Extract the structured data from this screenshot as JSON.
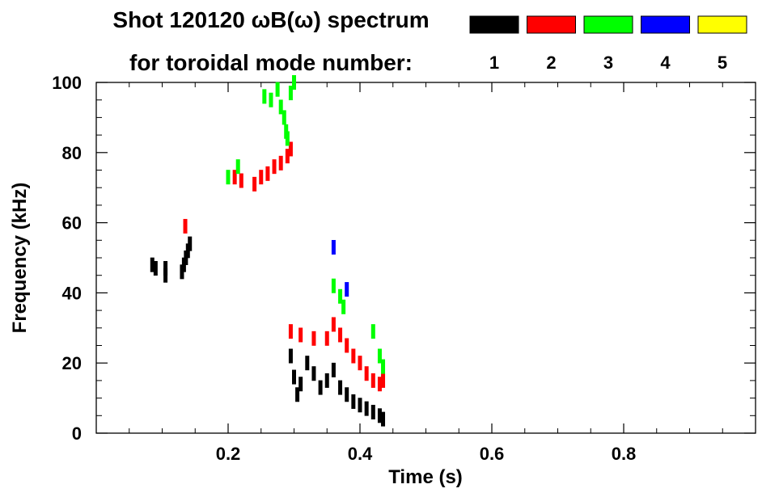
{
  "chart_data": {
    "type": "scatter",
    "title_line1": "Shot 120120 ωB(ω) spectrum",
    "title_line2": "for toroidal mode number:",
    "xlabel": "Time (s)",
    "ylabel": "Frequency (kHz)",
    "xlim": [
      0.0,
      1.0
    ],
    "ylim": [
      0,
      100
    ],
    "x_ticks": [
      0.2,
      0.4,
      0.6,
      0.8
    ],
    "x_tick_labels": [
      "0.2",
      "0.4",
      "0.6",
      "0.8"
    ],
    "y_ticks": [
      0,
      20,
      40,
      60,
      80,
      100
    ],
    "y_tick_labels": [
      "0",
      "20",
      "40",
      "60",
      "80",
      "100"
    ],
    "grid": false,
    "legend_position": "top-right",
    "series": [
      {
        "name": "1",
        "color": "#000000",
        "points": [
          [
            0.085,
            48
          ],
          [
            0.09,
            47
          ],
          [
            0.105,
            45
          ],
          [
            0.105,
            47
          ],
          [
            0.13,
            46
          ],
          [
            0.133,
            48
          ],
          [
            0.136,
            50
          ],
          [
            0.139,
            52
          ],
          [
            0.142,
            54
          ],
          [
            0.295,
            22
          ],
          [
            0.3,
            16
          ],
          [
            0.305,
            11
          ],
          [
            0.31,
            14
          ],
          [
            0.32,
            20
          ],
          [
            0.33,
            17
          ],
          [
            0.34,
            13
          ],
          [
            0.35,
            15
          ],
          [
            0.36,
            18
          ],
          [
            0.37,
            13
          ],
          [
            0.38,
            11
          ],
          [
            0.39,
            9
          ],
          [
            0.4,
            8
          ],
          [
            0.41,
            7
          ],
          [
            0.42,
            6
          ],
          [
            0.43,
            5
          ],
          [
            0.435,
            4
          ]
        ]
      },
      {
        "name": "2",
        "color": "#ff0000",
        "points": [
          [
            0.135,
            59
          ],
          [
            0.21,
            73
          ],
          [
            0.22,
            72
          ],
          [
            0.24,
            71
          ],
          [
            0.25,
            73
          ],
          [
            0.26,
            74
          ],
          [
            0.27,
            76
          ],
          [
            0.28,
            77
          ],
          [
            0.29,
            79
          ],
          [
            0.295,
            81
          ],
          [
            0.295,
            29
          ],
          [
            0.31,
            28
          ],
          [
            0.33,
            27
          ],
          [
            0.35,
            27
          ],
          [
            0.36,
            31
          ],
          [
            0.37,
            28
          ],
          [
            0.38,
            25
          ],
          [
            0.39,
            22
          ],
          [
            0.4,
            20
          ],
          [
            0.41,
            17
          ],
          [
            0.42,
            15
          ],
          [
            0.43,
            14
          ],
          [
            0.435,
            15
          ]
        ]
      },
      {
        "name": "3",
        "color": "#00ff00",
        "points": [
          [
            0.2,
            73
          ],
          [
            0.215,
            76
          ],
          [
            0.255,
            96
          ],
          [
            0.265,
            95
          ],
          [
            0.275,
            98
          ],
          [
            0.28,
            93
          ],
          [
            0.285,
            90
          ],
          [
            0.288,
            86
          ],
          [
            0.29,
            84
          ],
          [
            0.295,
            97
          ],
          [
            0.3,
            100
          ],
          [
            0.36,
            42
          ],
          [
            0.37,
            39
          ],
          [
            0.375,
            36
          ],
          [
            0.42,
            29
          ],
          [
            0.43,
            22
          ],
          [
            0.435,
            19
          ]
        ]
      },
      {
        "name": "4",
        "color": "#0000ff",
        "points": [
          [
            0.36,
            53
          ],
          [
            0.38,
            41
          ]
        ]
      },
      {
        "name": "5",
        "color": "#ffff00",
        "points": []
      }
    ]
  }
}
